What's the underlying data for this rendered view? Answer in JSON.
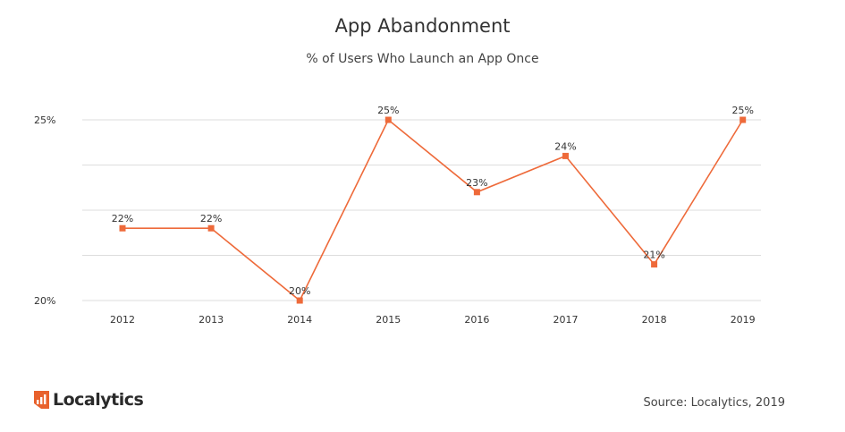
{
  "title": "App Abandonment",
  "subtitle": "% of Users Who Launch an App Once",
  "brand": {
    "name": "Localytics",
    "accent": "#e8612c",
    "logo_icon": "chart-bars-square-icon"
  },
  "source": "Source: Localytics, 2019",
  "colors": {
    "line": "#ee6a3a",
    "marker": "#ee6a3a",
    "grid": "#dddddd",
    "text": "#333333"
  },
  "chart_data": {
    "type": "line",
    "title": "App Abandonment",
    "subtitle": "% of Users Who Launch an App Once",
    "categories": [
      "2012",
      "2013",
      "2014",
      "2015",
      "2016",
      "2017",
      "2018",
      "2019"
    ],
    "series": [
      {
        "values": [
          22,
          22,
          20,
          25,
          23,
          24,
          21,
          25
        ],
        "labels": [
          "22%",
          "22%",
          "20%",
          "25%",
          "23%",
          "24%",
          "21%",
          "25%"
        ]
      }
    ],
    "ylim": [
      20,
      25
    ],
    "yticks": [
      20,
      21.25,
      22.5,
      23.75,
      25
    ],
    "ytick_labels": [
      "20%",
      "",
      "",
      "",
      "25%"
    ],
    "grid": true,
    "legend": "none"
  }
}
